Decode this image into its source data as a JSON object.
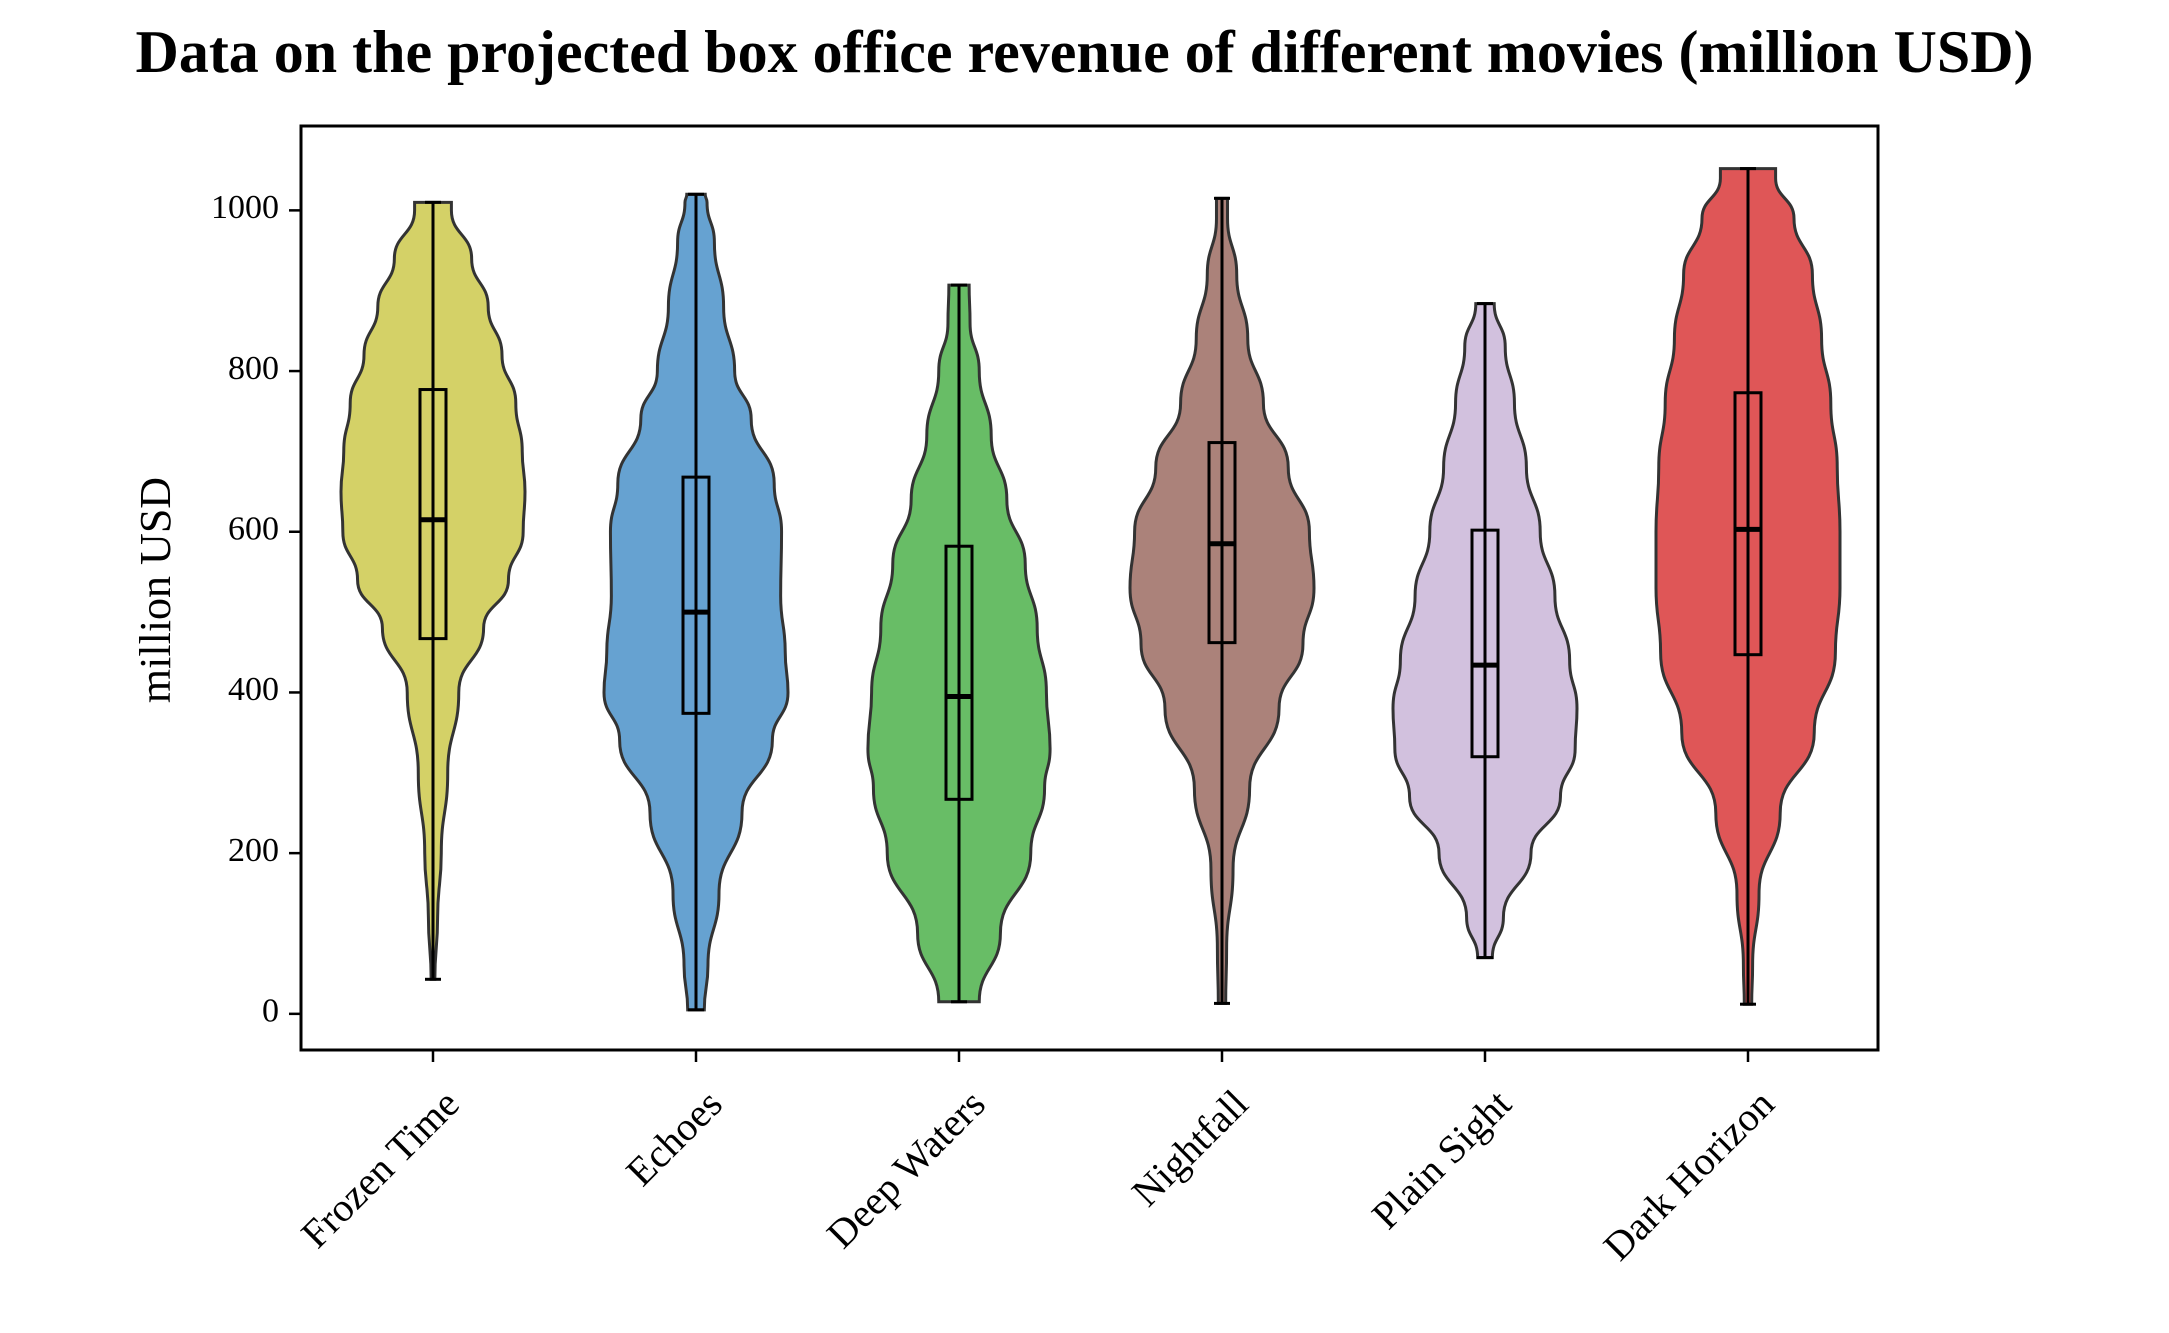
{
  "chart_data": {
    "type": "violin",
    "title": "Data on the projected box office revenue of different movies (million USD)",
    "xlabel": "",
    "ylabel": "million USD",
    "ylim": [
      -45,
      1105
    ],
    "yticks": [
      0,
      200,
      400,
      600,
      800,
      1000
    ],
    "grid": false,
    "categories": [
      "Frozen Time",
      "Echoes",
      "Deep Waters",
      "Nightfall",
      "Plain Sight",
      "Dark Horizon"
    ],
    "series": [
      {
        "name": "Frozen Time",
        "color": "#c8c43c",
        "min": 43,
        "q1": 467,
        "median": 615,
        "q3": 777,
        "max": 1010,
        "density": [
          [
            43,
            0.02
          ],
          [
            120,
            0.05
          ],
          [
            200,
            0.09
          ],
          [
            300,
            0.16
          ],
          [
            400,
            0.28
          ],
          [
            480,
            0.55
          ],
          [
            540,
            0.82
          ],
          [
            600,
            0.98
          ],
          [
            650,
            1.0
          ],
          [
            700,
            0.97
          ],
          [
            760,
            0.9
          ],
          [
            820,
            0.75
          ],
          [
            880,
            0.6
          ],
          [
            940,
            0.42
          ],
          [
            1000,
            0.2
          ],
          [
            1010,
            0.2
          ]
        ]
      },
      {
        "name": "Echoes",
        "color": "#3b88c4",
        "min": 5,
        "q1": 374,
        "median": 500,
        "q3": 668,
        "max": 1020,
        "density": [
          [
            5,
            0.09
          ],
          [
            60,
            0.13
          ],
          [
            150,
            0.25
          ],
          [
            250,
            0.5
          ],
          [
            340,
            0.83
          ],
          [
            400,
            1.0
          ],
          [
            450,
            0.97
          ],
          [
            520,
            0.92
          ],
          [
            600,
            0.93
          ],
          [
            660,
            0.85
          ],
          [
            740,
            0.6
          ],
          [
            800,
            0.42
          ],
          [
            880,
            0.3
          ],
          [
            960,
            0.2
          ],
          [
            1010,
            0.12
          ],
          [
            1020,
            0.1
          ]
        ]
      },
      {
        "name": "Deep Waters",
        "color": "#3dab3b",
        "min": 15,
        "q1": 267,
        "median": 395,
        "q3": 582,
        "max": 907,
        "density": [
          [
            15,
            0.22
          ],
          [
            100,
            0.45
          ],
          [
            200,
            0.78
          ],
          [
            280,
            0.93
          ],
          [
            330,
            0.99
          ],
          [
            400,
            0.95
          ],
          [
            480,
            0.85
          ],
          [
            560,
            0.72
          ],
          [
            640,
            0.52
          ],
          [
            720,
            0.35
          ],
          [
            800,
            0.22
          ],
          [
            860,
            0.12
          ],
          [
            907,
            0.11
          ]
        ]
      },
      {
        "name": "Nightfall",
        "color": "#945f54",
        "min": 13,
        "q1": 462,
        "median": 585,
        "q3": 711,
        "max": 1015,
        "density": [
          [
            13,
            0.04
          ],
          [
            80,
            0.05
          ],
          [
            180,
            0.12
          ],
          [
            280,
            0.3
          ],
          [
            380,
            0.62
          ],
          [
            460,
            0.88
          ],
          [
            530,
            1.0
          ],
          [
            600,
            0.95
          ],
          [
            680,
            0.72
          ],
          [
            760,
            0.45
          ],
          [
            840,
            0.28
          ],
          [
            920,
            0.16
          ],
          [
            990,
            0.06
          ],
          [
            1015,
            0.06
          ]
        ]
      },
      {
        "name": "Plain Sight",
        "color": "#c5b0d5",
        "min": 70,
        "q1": 320,
        "median": 434,
        "q3": 602,
        "max": 884,
        "density": [
          [
            70,
            0.08
          ],
          [
            120,
            0.2
          ],
          [
            200,
            0.5
          ],
          [
            270,
            0.82
          ],
          [
            330,
            0.98
          ],
          [
            380,
            1.0
          ],
          [
            440,
            0.92
          ],
          [
            520,
            0.76
          ],
          [
            600,
            0.6
          ],
          [
            680,
            0.45
          ],
          [
            760,
            0.32
          ],
          [
            830,
            0.22
          ],
          [
            884,
            0.1
          ]
        ]
      },
      {
        "name": "Dark Horizon",
        "color": "#d62728",
        "min": 12,
        "q1": 447,
        "median": 603,
        "q3": 773,
        "max": 1052,
        "density": [
          [
            12,
            0.04
          ],
          [
            60,
            0.05
          ],
          [
            150,
            0.12
          ],
          [
            250,
            0.35
          ],
          [
            350,
            0.72
          ],
          [
            450,
            0.95
          ],
          [
            530,
            1.0
          ],
          [
            600,
            1.0
          ],
          [
            680,
            0.97
          ],
          [
            760,
            0.9
          ],
          [
            840,
            0.8
          ],
          [
            920,
            0.7
          ],
          [
            990,
            0.5
          ],
          [
            1040,
            0.3
          ],
          [
            1052,
            0.3
          ]
        ]
      }
    ]
  }
}
